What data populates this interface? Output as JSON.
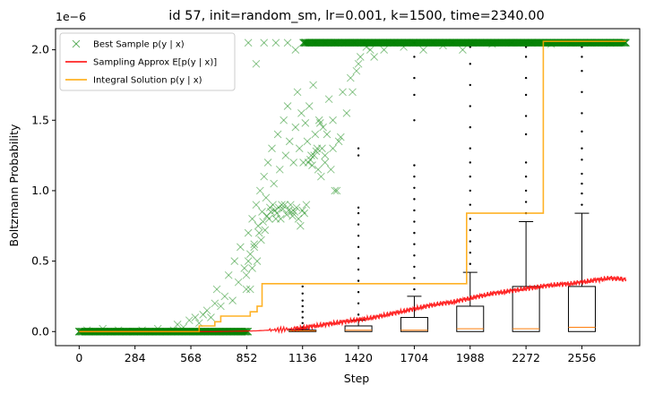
{
  "chart_data": {
    "type": "scatter",
    "title": "id 57, init=random_sm, lr=0.001, k=1500, time=2340.00",
    "xlabel": "Step",
    "ylabel": "Boltzmann Probability",
    "y_offset_text": "1e−6",
    "xlim": [
      -120,
      2850
    ],
    "ylim": [
      -0.1,
      2.15
    ],
    "x_ticks": [
      0,
      284,
      568,
      852,
      1136,
      1420,
      1704,
      1988,
      2272,
      2556
    ],
    "x_tick_labels": [
      "0",
      "284",
      "568",
      "852",
      "1136",
      "1420",
      "1704",
      "1988",
      "2272",
      "2556"
    ],
    "y_ticks": [
      0.0,
      0.5,
      1.0,
      1.5,
      2.0
    ],
    "y_tick_labels": [
      "0.0",
      "0.5",
      "1.0",
      "1.5",
      "2.0"
    ],
    "grid": false,
    "legend_position": "top-left",
    "legend": [
      {
        "label": "Best Sample p(y | x)",
        "color": "#008000",
        "marker": "x"
      },
      {
        "label": "Sampling Approx E[p(y | x)]",
        "color": "#ff0000",
        "marker": "line"
      },
      {
        "label": "Integral Solution p(y | x)",
        "color": "#ffa500",
        "marker": "line"
      }
    ],
    "series": [
      {
        "name": "Best Sample p(y | x)",
        "color": "#008000",
        "kind": "scatter",
        "points": [
          [
            0,
            0.0
          ],
          [
            40,
            0.01
          ],
          [
            80,
            0.0
          ],
          [
            120,
            0.02
          ],
          [
            160,
            0.0
          ],
          [
            200,
            0.01
          ],
          [
            240,
            0.0
          ],
          [
            280,
            0.0
          ],
          [
            320,
            0.01
          ],
          [
            360,
            0.0
          ],
          [
            400,
            0.02
          ],
          [
            440,
            0.0
          ],
          [
            480,
            0.01
          ],
          [
            500,
            0.05
          ],
          [
            530,
            0.03
          ],
          [
            560,
            0.08
          ],
          [
            590,
            0.1
          ],
          [
            610,
            0.06
          ],
          [
            630,
            0.12
          ],
          [
            650,
            0.15
          ],
          [
            670,
            0.1
          ],
          [
            690,
            0.2
          ],
          [
            700,
            0.3
          ],
          [
            720,
            0.18
          ],
          [
            740,
            0.25
          ],
          [
            760,
            0.4
          ],
          [
            780,
            0.22
          ],
          [
            790,
            0.5
          ],
          [
            810,
            0.35
          ],
          [
            820,
            0.6
          ],
          [
            840,
            0.45
          ],
          [
            850,
            0.3
          ],
          [
            860,
            0.7
          ],
          [
            870,
            0.55
          ],
          [
            880,
            0.8
          ],
          [
            890,
            0.62
          ],
          [
            900,
            0.9
          ],
          [
            910,
            0.75
          ],
          [
            920,
            1.0
          ],
          [
            930,
            0.85
          ],
          [
            940,
            1.1
          ],
          [
            950,
            0.95
          ],
          [
            960,
            1.2
          ],
          [
            970,
            0.88
          ],
          [
            980,
            1.3
          ],
          [
            990,
            1.05
          ],
          [
            1000,
            0.8
          ],
          [
            1010,
            1.4
          ],
          [
            1020,
            1.15
          ],
          [
            1030,
            0.9
          ],
          [
            1040,
            1.5
          ],
          [
            1050,
            1.25
          ],
          [
            1060,
            1.6
          ],
          [
            1070,
            1.35
          ],
          [
            1080,
            0.85
          ],
          [
            1090,
            1.2
          ],
          [
            1100,
            1.45
          ],
          [
            1110,
            1.7
          ],
          [
            1120,
            1.3
          ],
          [
            1130,
            1.55
          ],
          [
            1140,
            1.2
          ],
          [
            1150,
            1.48
          ],
          [
            1160,
            1.35
          ],
          [
            1170,
            1.6
          ],
          [
            1180,
            1.25
          ],
          [
            1190,
            1.75
          ],
          [
            1200,
            1.4
          ],
          [
            1210,
            1.3
          ],
          [
            1220,
            1.5
          ],
          [
            1230,
            1.1
          ],
          [
            1240,
            1.45
          ],
          [
            1250,
            1.25
          ],
          [
            1260,
            1.4
          ],
          [
            1280,
            1.15
          ],
          [
            1290,
            1.3
          ],
          [
            1300,
            1.0
          ],
          [
            1320,
            1.35
          ],
          [
            1340,
            1.7
          ],
          [
            1380,
            1.8
          ],
          [
            1420,
            1.9
          ],
          [
            1450,
            2.05
          ],
          [
            1500,
            1.95
          ],
          [
            1550,
            2.0
          ],
          [
            1600,
            2.05
          ],
          [
            1650,
            2.02
          ],
          [
            1700,
            2.05
          ],
          [
            1750,
            2.0
          ],
          [
            1800,
            2.05
          ],
          [
            1850,
            2.03
          ],
          [
            1900,
            2.05
          ],
          [
            1950,
            2.0
          ],
          [
            2000,
            2.05
          ],
          [
            2100,
            2.04
          ],
          [
            2200,
            2.05
          ],
          [
            2300,
            2.05
          ],
          [
            2400,
            2.04
          ],
          [
            2500,
            2.05
          ],
          [
            2600,
            2.05
          ],
          [
            2700,
            2.05
          ],
          [
            2780,
            2.05
          ],
          [
            850,
            0.4
          ],
          [
            860,
            0.5
          ],
          [
            870,
            0.3
          ],
          [
            880,
            0.45
          ],
          [
            890,
            0.6
          ],
          [
            905,
            0.5
          ],
          [
            915,
            0.7
          ],
          [
            925,
            0.65
          ],
          [
            935,
            0.78
          ],
          [
            945,
            0.72
          ],
          [
            955,
            0.82
          ],
          [
            965,
            0.8
          ],
          [
            975,
            0.85
          ],
          [
            985,
            0.9
          ],
          [
            995,
            0.86
          ],
          [
            1005,
            0.84
          ],
          [
            1015,
            0.88
          ],
          [
            1025,
            0.8
          ],
          [
            1035,
            0.87
          ],
          [
            1045,
            0.9
          ],
          [
            1055,
            0.83
          ],
          [
            1065,
            0.86
          ],
          [
            1075,
            0.9
          ],
          [
            1085,
            0.82
          ],
          [
            1095,
            0.85
          ],
          [
            1105,
            0.88
          ],
          [
            1115,
            0.8
          ],
          [
            1125,
            0.75
          ],
          [
            1135,
            0.86
          ],
          [
            1145,
            0.84
          ],
          [
            1155,
            0.9
          ],
          [
            1165,
            1.2
          ],
          [
            1175,
            1.22
          ],
          [
            1185,
            1.18
          ],
          [
            1195,
            1.25
          ],
          [
            1205,
            1.28
          ],
          [
            1215,
            1.15
          ],
          [
            1225,
            1.48
          ],
          [
            1235,
            1.3
          ],
          [
            1250,
            1.2
          ],
          [
            1270,
            1.65
          ],
          [
            1290,
            1.5
          ],
          [
            1310,
            1.0
          ],
          [
            1330,
            1.38
          ],
          [
            1360,
            1.55
          ],
          [
            1390,
            1.7
          ],
          [
            1410,
            1.85
          ],
          [
            1430,
            1.95
          ],
          [
            1460,
            2.02
          ],
          [
            1480,
            2.0
          ],
          [
            860,
            2.05
          ],
          [
            900,
            1.9
          ],
          [
            940,
            2.05
          ],
          [
            1000,
            2.05
          ],
          [
            1060,
            2.05
          ],
          [
            1100,
            2.0
          ],
          [
            1150,
            2.05
          ],
          [
            1200,
            2.05
          ],
          [
            1250,
            2.05
          ],
          [
            1300,
            2.05
          ],
          [
            1350,
            2.05
          ],
          [
            1400,
            2.05
          ]
        ]
      },
      {
        "name": "Sampling Approx E[p(y | x)]",
        "color": "#ff0000",
        "kind": "line",
        "points": [
          [
            0,
            0.0
          ],
          [
            400,
            0.0
          ],
          [
            700,
            0.0
          ],
          [
            900,
            0.005
          ],
          [
            1100,
            0.02
          ],
          [
            1200,
            0.04
          ],
          [
            1300,
            0.06
          ],
          [
            1400,
            0.08
          ],
          [
            1500,
            0.1
          ],
          [
            1600,
            0.13
          ],
          [
            1700,
            0.16
          ],
          [
            1800,
            0.19
          ],
          [
            1900,
            0.21
          ],
          [
            2000,
            0.24
          ],
          [
            2100,
            0.27
          ],
          [
            2200,
            0.29
          ],
          [
            2300,
            0.31
          ],
          [
            2400,
            0.33
          ],
          [
            2500,
            0.34
          ],
          [
            2600,
            0.36
          ],
          [
            2700,
            0.38
          ],
          [
            2780,
            0.37
          ]
        ]
      },
      {
        "name": "Integral Solution p(y | x)",
        "color": "#ffa500",
        "kind": "step",
        "points": [
          [
            0,
            0.0
          ],
          [
            610,
            0.0
          ],
          [
            610,
            0.04
          ],
          [
            690,
            0.04
          ],
          [
            690,
            0.07
          ],
          [
            720,
            0.07
          ],
          [
            720,
            0.11
          ],
          [
            870,
            0.11
          ],
          [
            870,
            0.14
          ],
          [
            905,
            0.14
          ],
          [
            905,
            0.18
          ],
          [
            930,
            0.18
          ],
          [
            930,
            0.34
          ],
          [
            1970,
            0.34
          ],
          [
            1970,
            0.84
          ],
          [
            2360,
            0.84
          ],
          [
            2360,
            2.06
          ],
          [
            2780,
            2.06
          ]
        ]
      }
    ],
    "boxes": [
      {
        "x": 1136,
        "q1": 0.0,
        "median": 0.005,
        "q3": 0.01,
        "whisker_low": 0.0,
        "whisker_high": 0.02,
        "outliers": [
          0.03,
          0.06,
          0.1,
          0.14,
          0.18,
          0.22,
          0.27,
          0.32
        ]
      },
      {
        "x": 1420,
        "q1": 0.0,
        "median": 0.01,
        "q3": 0.04,
        "whisker_low": 0.0,
        "whisker_high": 0.08,
        "outliers": [
          0.12,
          0.2,
          0.28,
          0.36,
          0.44,
          0.52,
          0.6,
          0.68,
          0.76,
          0.84,
          0.88,
          1.25,
          1.3
        ]
      },
      {
        "x": 1704,
        "q1": 0.0,
        "median": 0.01,
        "q3": 0.1,
        "whisker_low": 0.0,
        "whisker_high": 0.25,
        "outliers": [
          0.3,
          0.38,
          0.46,
          0.54,
          0.62,
          0.7,
          0.78,
          0.86,
          0.94,
          1.02,
          1.1,
          1.18,
          1.5,
          1.68,
          1.8,
          1.95,
          2.05
        ]
      },
      {
        "x": 1988,
        "q1": 0.0,
        "median": 0.02,
        "q3": 0.18,
        "whisker_low": 0.0,
        "whisker_high": 0.42,
        "outliers": [
          0.48,
          0.56,
          0.64,
          0.72,
          0.8,
          0.9,
          1.0,
          1.1,
          1.2,
          1.3,
          1.45,
          1.6,
          1.75,
          1.9,
          2.02
        ]
      },
      {
        "x": 2272,
        "q1": 0.0,
        "median": 0.02,
        "q3": 0.32,
        "whisker_low": 0.0,
        "whisker_high": 0.78,
        "outliers": [
          0.84,
          0.92,
          1.0,
          1.1,
          1.2,
          1.4,
          1.53,
          1.68,
          1.8,
          1.95,
          2.02
        ]
      },
      {
        "x": 2556,
        "q1": 0.0,
        "median": 0.03,
        "q3": 0.32,
        "whisker_low": 0.0,
        "whisker_high": 0.84,
        "outliers": [
          0.9,
          0.98,
          1.05,
          1.12,
          1.22,
          1.3,
          1.42,
          1.55,
          1.7,
          1.85,
          1.95,
          2.02
        ]
      }
    ]
  }
}
